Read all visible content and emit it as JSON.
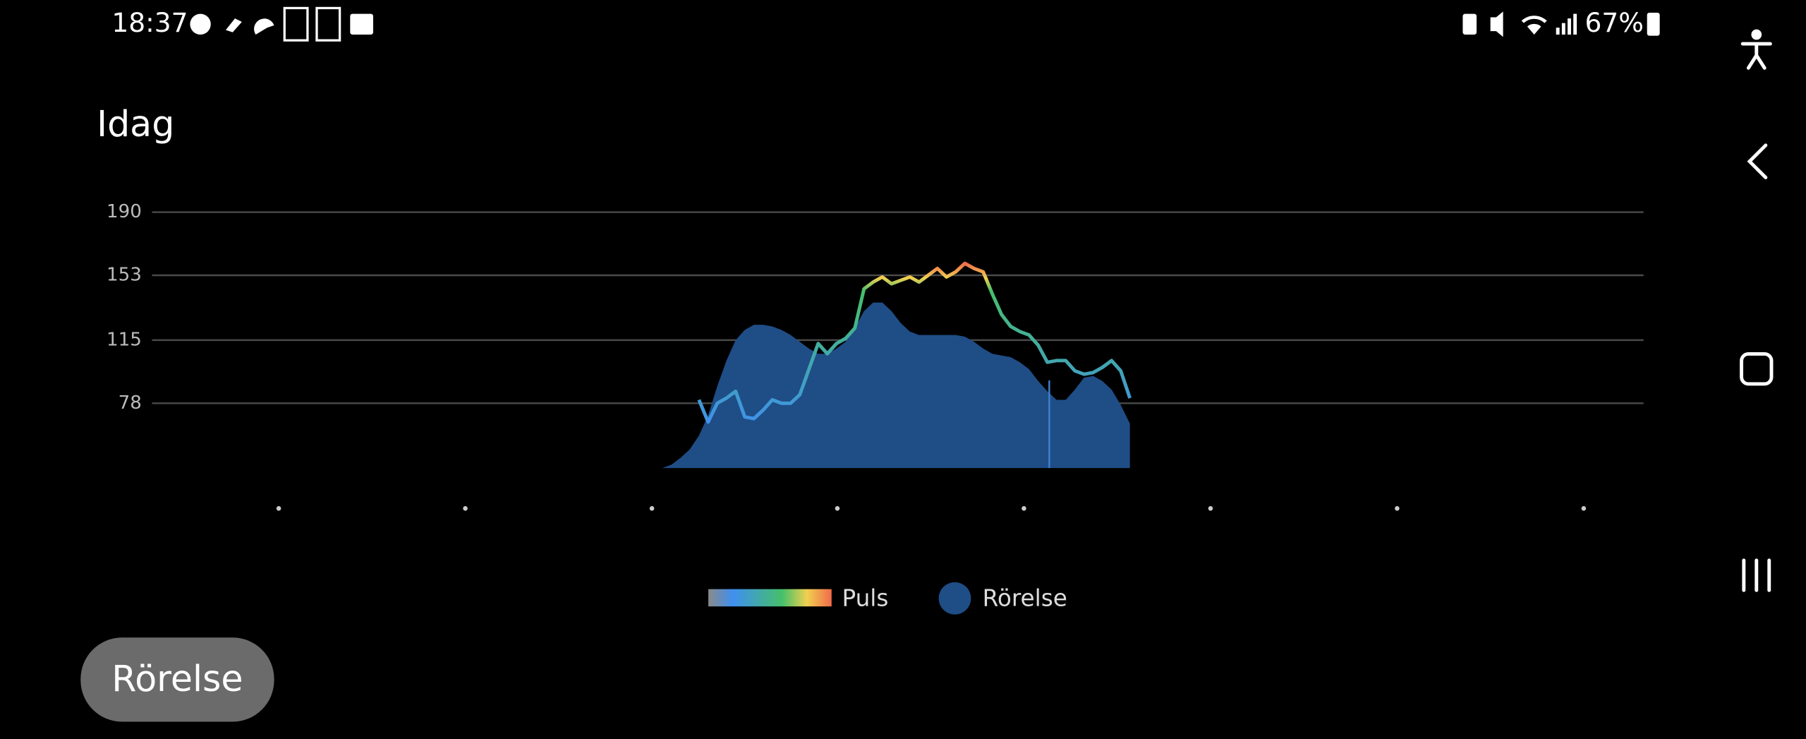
{
  "status_bar": {
    "time": "18:37",
    "battery": "67%"
  },
  "header": {
    "title": "Idag"
  },
  "chart_data": {
    "type": "line",
    "categories": [
      null,
      null,
      null,
      null,
      null,
      null,
      null,
      null,
      null,
      null,
      null,
      null,
      null,
      null,
      null,
      null,
      null,
      null,
      null,
      null,
      null,
      null,
      null,
      null,
      null,
      null,
      null,
      null,
      null,
      null,
      null,
      null,
      null,
      null,
      null,
      null,
      null,
      null,
      null,
      null,
      null,
      null,
      null,
      null,
      null,
      null,
      null,
      null,
      null,
      null,
      null,
      null
    ],
    "series": [
      {
        "name": "Puls",
        "type": "line",
        "colors": [
          "#8a8a8a",
          "#3f8ff0",
          "#45c06a",
          "#f0d050",
          "#f06a4a"
        ],
        "values": [
          null,
          null,
          null,
          null,
          80,
          67,
          78,
          81,
          85,
          70,
          69,
          74,
          80,
          78,
          78,
          83,
          98,
          113,
          107,
          113,
          116,
          122,
          145,
          149,
          152,
          148,
          150,
          152,
          149,
          153,
          157,
          152,
          155,
          160,
          157,
          155,
          142,
          130,
          123,
          120,
          118,
          112,
          102,
          103,
          103,
          97,
          95,
          96,
          99,
          103,
          97,
          81
        ]
      },
      {
        "name": "Rörelse",
        "type": "area",
        "color": "#1f4d86",
        "values": [
          40,
          42,
          46,
          51,
          59,
          71,
          88,
          103,
          115,
          121,
          124,
          124,
          123,
          121,
          118,
          114,
          110,
          107,
          107,
          110,
          114,
          122,
          132,
          137,
          137,
          132,
          125,
          120,
          118,
          118,
          118,
          118,
          118,
          117,
          114,
          110,
          107,
          106,
          105,
          102,
          98,
          91,
          85,
          80,
          80,
          86,
          93,
          94,
          91,
          86,
          77,
          66
        ]
      }
    ],
    "ylim": [
      40,
      190
    ],
    "yticks": [
      190,
      153,
      115,
      78
    ],
    "grid": true
  },
  "button": {
    "label": "Rörelse"
  }
}
